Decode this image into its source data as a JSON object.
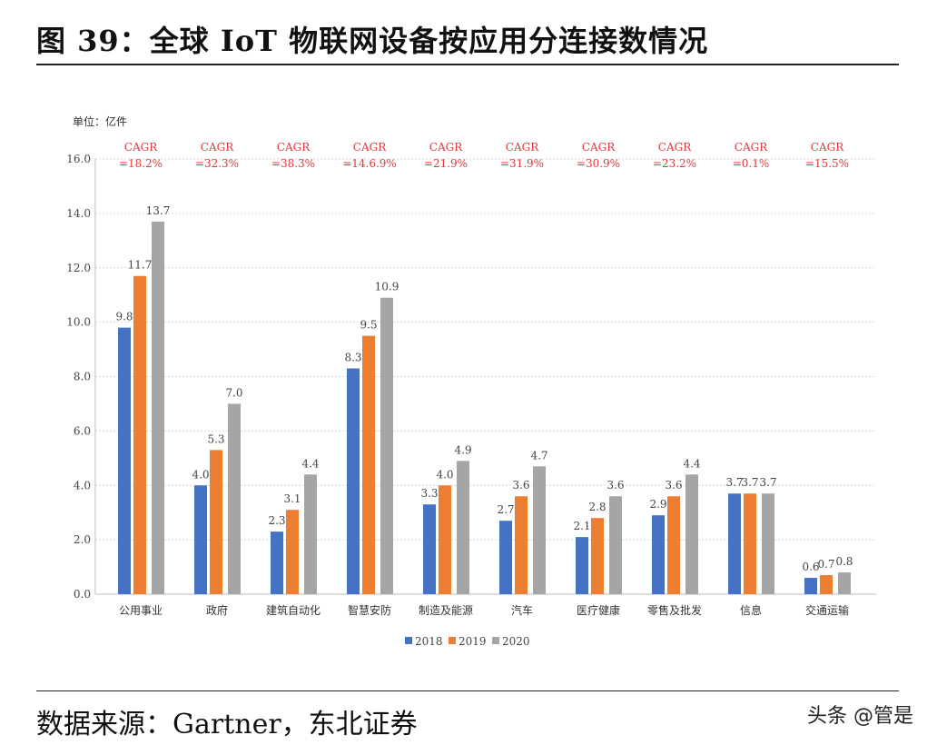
{
  "title": "图 39：全球 IoT 物联网设备按应用分连接数情况",
  "source": "数据来源：Gartner，东北证券",
  "watermark": "头条 @管是",
  "chart_data": {
    "type": "bar",
    "unit_label": "单位：亿件",
    "categories": [
      "公用事业",
      "政府",
      "建筑自动化",
      "智慧安防",
      "制造及能源",
      "汽车",
      "医疗健康",
      "零售及批发",
      "信息",
      "交通运输"
    ],
    "series": [
      {
        "name": "2018",
        "color": "#4472C4",
        "values": [
          9.8,
          4.0,
          2.3,
          8.3,
          3.3,
          2.7,
          2.1,
          2.9,
          3.7,
          0.6
        ]
      },
      {
        "name": "2019",
        "color": "#ED7D31",
        "values": [
          11.7,
          5.3,
          3.1,
          9.5,
          4.0,
          3.6,
          2.8,
          3.6,
          3.7,
          0.7
        ]
      },
      {
        "name": "2020",
        "color": "#A5A5A5",
        "values": [
          13.7,
          7.0,
          4.4,
          10.9,
          4.9,
          4.7,
          3.6,
          4.4,
          3.7,
          0.8
        ]
      }
    ],
    "annotations": {
      "label": "CAGR",
      "values": [
        "=18.2%",
        "=32.3%",
        "=38.3%",
        "=14.6.9%",
        "=21.9%",
        "=31.9%",
        "=30.9%",
        "=23.2%",
        "=0.1%",
        "=15.5%"
      ],
      "color": "#E0393E"
    },
    "yticks": [
      "0.0",
      "2.0",
      "4.0",
      "6.0",
      "8.0",
      "10.0",
      "12.0",
      "14.0",
      "16.0"
    ],
    "ylim": [
      0,
      16
    ],
    "grid": true,
    "legend": "bottom"
  }
}
